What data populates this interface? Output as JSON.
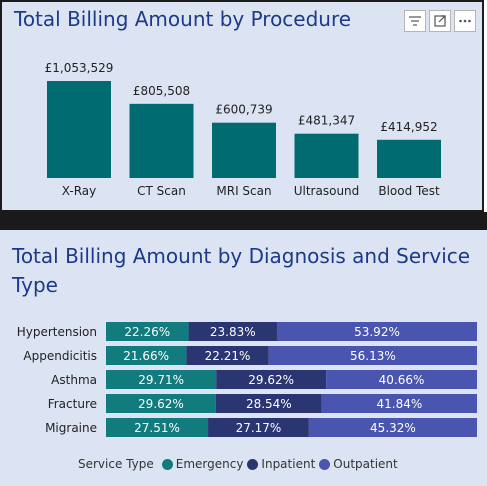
{
  "colors": {
    "teal": "#006b70",
    "emergency": "#127b7e",
    "inpatient": "#2b3572",
    "outpatient": "#4a55b0",
    "title": "#1c3a8a"
  },
  "toolbar": {
    "filter_icon": "filter-icon",
    "focus_icon": "focus-mode-icon",
    "more_icon": "more-options-icon"
  },
  "chart_data": [
    {
      "type": "bar",
      "title": "Total Billing Amount by Procedure",
      "categories": [
        "X-Ray",
        "CT Scan",
        "MRI Scan",
        "Ultrasound",
        "Blood Test"
      ],
      "values": [
        1053529,
        805508,
        600739,
        481347,
        414952
      ],
      "data_labels": [
        "£1,053,529",
        "£805,508",
        "£600,739",
        "£481,347",
        "£414,952"
      ],
      "xlabel": "",
      "ylabel": "",
      "ylim": [
        0,
        1053529
      ]
    },
    {
      "type": "bar",
      "orientation": "horizontal",
      "stacked": "100%",
      "title": "Total Billing Amount by Diagnosis and Service Type",
      "categories": [
        "Hypertension",
        "Appendicitis",
        "Asthma",
        "Fracture",
        "Migraine"
      ],
      "series": [
        {
          "name": "Emergency",
          "values": [
            22.26,
            21.66,
            29.71,
            29.62,
            27.51
          ],
          "labels": [
            "22.26%",
            "21.66%",
            "29.71%",
            "29.62%",
            "27.51%"
          ]
        },
        {
          "name": "Inpatient",
          "values": [
            23.83,
            22.21,
            29.62,
            28.54,
            27.17
          ],
          "labels": [
            "23.83%",
            "22.21%",
            "29.62%",
            "28.54%",
            "27.17%"
          ]
        },
        {
          "name": "Outpatient",
          "values": [
            53.92,
            56.13,
            40.66,
            41.84,
            45.32
          ],
          "labels": [
            "53.92%",
            "56.13%",
            "40.66%",
            "41.84%",
            "45.32%"
          ]
        }
      ],
      "legend_title": "Service Type",
      "legend": [
        "Emergency",
        "Inpatient",
        "Outpatient"
      ],
      "legend_position": "bottom"
    }
  ]
}
